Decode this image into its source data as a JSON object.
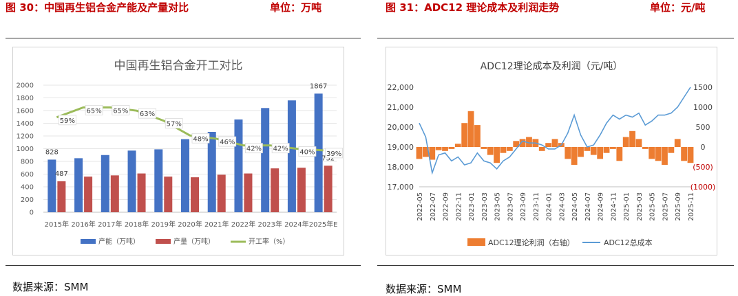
{
  "left": {
    "figure_title": "图 30：中国再生铝合金产能及产量对比",
    "unit": "单位：万吨",
    "source": "数据来源：SMM"
  },
  "right": {
    "figure_title": "图 31：ADC12 理论成本及利润走势",
    "unit": "单位：元/吨",
    "source": "数据来源：SMM"
  },
  "colors": {
    "title_red": "#c00000",
    "capacity_blue": "#4472c4",
    "production_red": "#c0504d",
    "rate_green": "#9bbb59",
    "profit_orange": "#ed7d31",
    "cost_blue": "#5b9bd5",
    "negative_red": "#c00000"
  },
  "chart_data": [
    {
      "type": "bar",
      "title": "中国再生铝合金开工对比",
      "categories": [
        "2015年",
        "2016年",
        "2017年",
        "2018年",
        "2019年",
        "2020年",
        "2021年",
        "2022年",
        "2023年",
        "2024年",
        "2025年E"
      ],
      "ylim": [
        0,
        2000
      ],
      "y_ticks": [
        0,
        200,
        400,
        600,
        800,
        1000,
        1200,
        1400,
        1600,
        1800,
        2000
      ],
      "series": [
        {
          "name": "产能（万吨）",
          "kind": "bar",
          "color": "#4472c4",
          "values": [
            828,
            850,
            900,
            970,
            990,
            1150,
            1265,
            1460,
            1640,
            1760,
            1867
          ],
          "data_labels": {
            "0": "828",
            "10": "1867"
          }
        },
        {
          "name": "产量（万吨）",
          "kind": "bar",
          "color": "#c0504d",
          "values": [
            487,
            560,
            580,
            610,
            560,
            550,
            590,
            610,
            690,
            700,
            732
          ],
          "data_labels": {
            "0": "487",
            "10": "732"
          }
        },
        {
          "name": "开工率（%）",
          "kind": "line",
          "color": "#9bbb59",
          "values": [
            59,
            65,
            65,
            63,
            57,
            48,
            46,
            42,
            42,
            40,
            39
          ],
          "data_labels": [
            "59%",
            "65%",
            "65%",
            "63%",
            "57%",
            "48%",
            "46%",
            "42%",
            "42%",
            "40%",
            "39%"
          ]
        }
      ],
      "legend_position": "bottom"
    },
    {
      "type": "line",
      "title": "ADC12理论成本及利润（元/吨）",
      "x_tick_labels": [
        "2022-05",
        "2022-07",
        "2022-09",
        "2022-11",
        "2023-01",
        "2023-03",
        "2023-05",
        "2023-07",
        "2023-09",
        "2023-11",
        "2024-01",
        "2024-03",
        "2024-05",
        "2024-07",
        "2024-09",
        "2024-11",
        "2025-01",
        "2025-03",
        "2025-05",
        "2025-07",
        "2025-09",
        "2025-11"
      ],
      "left_axis": {
        "ylim": [
          17000,
          22000
        ],
        "ticks": [
          "17,000",
          "18,000",
          "19,000",
          "20,000",
          "21,000",
          "22,000"
        ]
      },
      "right_axis": {
        "ylim": [
          -1000,
          1500
        ],
        "ticks": [
          "(1000)",
          "(500)",
          "0",
          "500",
          "1000",
          "1500"
        ]
      },
      "series": [
        {
          "name": "ADC12理论利润（右轴）",
          "kind": "area",
          "axis": "right",
          "color": "#ed7d31",
          "x": [
            "2022-05",
            "2022-06",
            "2022-07",
            "2022-08",
            "2022-09",
            "2022-10",
            "2022-11",
            "2022-12",
            "2023-01",
            "2023-02",
            "2023-03",
            "2023-04",
            "2023-05",
            "2023-06",
            "2023-07",
            "2023-08",
            "2023-09",
            "2023-10",
            "2023-11",
            "2023-12",
            "2024-01",
            "2024-02",
            "2024-03",
            "2024-04",
            "2024-05",
            "2024-06",
            "2024-07",
            "2024-08",
            "2024-09",
            "2024-10",
            "2024-11",
            "2024-12",
            "2025-01",
            "2025-02",
            "2025-03",
            "2025-04",
            "2025-05",
            "2025-06",
            "2025-07",
            "2025-08",
            "2025-09",
            "2025-10",
            "2025-11"
          ],
          "values": [
            -300,
            -250,
            -320,
            -80,
            -100,
            -50,
            80,
            600,
            900,
            550,
            -50,
            -200,
            -400,
            -150,
            -100,
            150,
            200,
            250,
            200,
            -100,
            100,
            200,
            100,
            -300,
            -450,
            -250,
            -100,
            -200,
            -300,
            -150,
            -50,
            -350,
            250,
            400,
            200,
            -50,
            -300,
            -350,
            -450,
            -150,
            200,
            -350,
            -400
          ]
        },
        {
          "name": "ADC12总成本",
          "kind": "line",
          "axis": "left",
          "color": "#5b9bd5",
          "x": [
            "2022-05",
            "2022-06",
            "2022-07",
            "2022-08",
            "2022-09",
            "2022-10",
            "2022-11",
            "2022-12",
            "2023-01",
            "2023-02",
            "2023-03",
            "2023-04",
            "2023-05",
            "2023-06",
            "2023-07",
            "2023-08",
            "2023-09",
            "2023-10",
            "2023-11",
            "2023-12",
            "2024-01",
            "2024-02",
            "2024-03",
            "2024-04",
            "2024-05",
            "2024-06",
            "2024-07",
            "2024-08",
            "2024-09",
            "2024-10",
            "2024-11",
            "2024-12",
            "2025-01",
            "2025-02",
            "2025-03",
            "2025-04",
            "2025-05",
            "2025-06",
            "2025-07",
            "2025-08",
            "2025-09",
            "2025-10",
            "2025-11"
          ],
          "values": [
            20200,
            19500,
            17700,
            18600,
            18700,
            18300,
            18500,
            18100,
            18200,
            18700,
            18300,
            18200,
            17900,
            18300,
            18500,
            18900,
            19300,
            19200,
            19200,
            19100,
            18900,
            18900,
            19100,
            19700,
            20600,
            19600,
            19000,
            19100,
            19600,
            20200,
            20600,
            20400,
            20600,
            20500,
            20700,
            20100,
            20300,
            20600,
            20600,
            20700,
            21000,
            21500,
            22000
          ]
        }
      ],
      "legend_position": "bottom"
    }
  ]
}
